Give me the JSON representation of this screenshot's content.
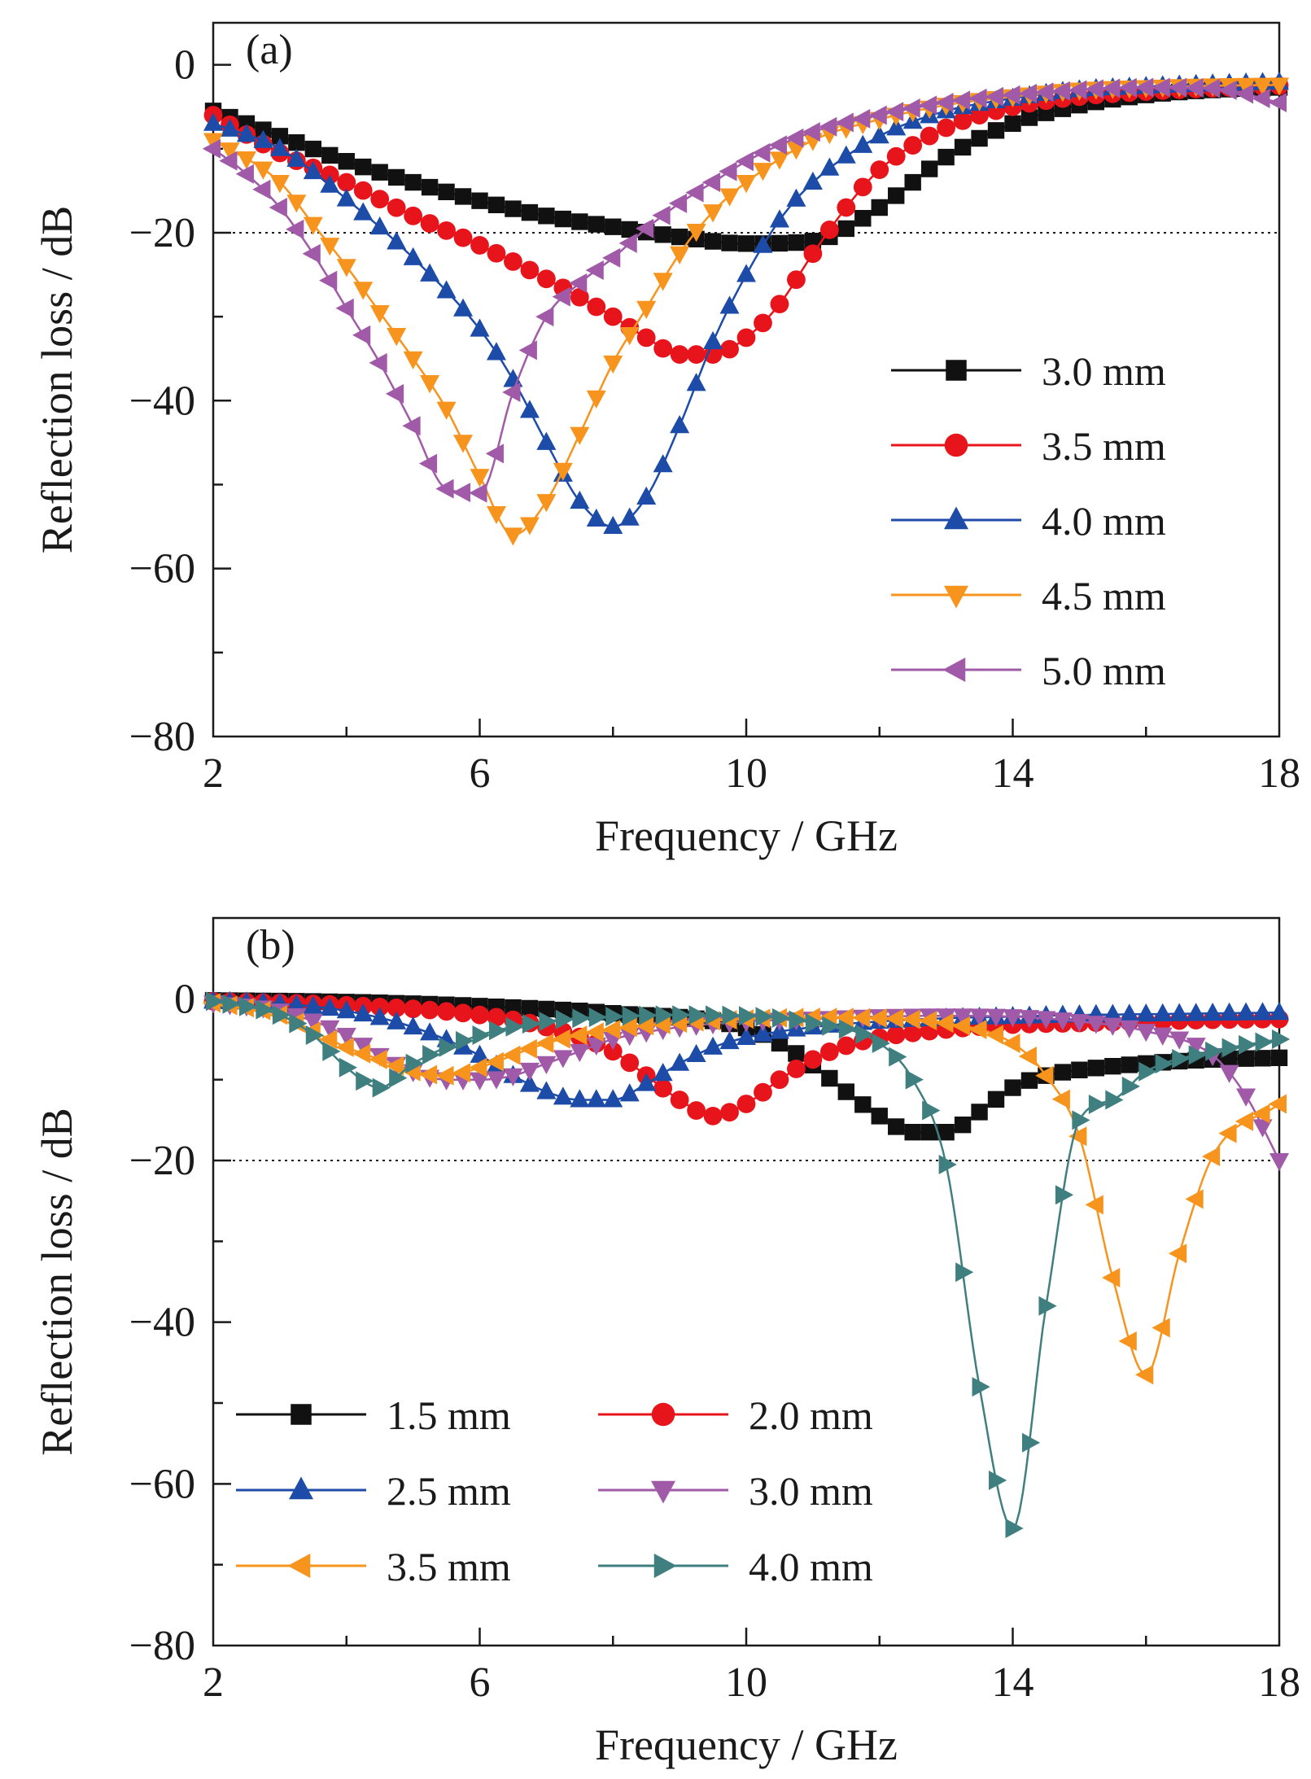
{
  "chart_data": [
    {
      "type": "line",
      "panel_label": "(a)",
      "xlabel": "Frequency / GHz",
      "ylabel": "Reflection loss / dB",
      "xlim": [
        2,
        18
      ],
      "ylim": [
        -80,
        5
      ],
      "xticks": [
        2,
        6,
        10,
        14,
        18
      ],
      "yticks": [
        0,
        -20,
        -40,
        -60,
        -80
      ],
      "xticks_display": [
        "2",
        "6",
        "10",
        "14",
        "18"
      ],
      "yticks_display": [
        "0",
        "−20",
        "−40",
        "−60",
        "−80"
      ],
      "reference_line_y": -20,
      "grid": false,
      "legend_position": "right",
      "legend_columns": 1,
      "series": [
        {
          "name": "3.0 mm",
          "color": "#111111",
          "marker": "square",
          "x": [
            2,
            3,
            4,
            5,
            6,
            7,
            8,
            9,
            10,
            11,
            12,
            13,
            14,
            15,
            16,
            17,
            18
          ],
          "y": [
            -5.5,
            -8.5,
            -11.5,
            -14,
            -16.2,
            -18,
            -19.3,
            -20.5,
            -21.3,
            -21,
            -17,
            -11,
            -7,
            -4.8,
            -3.6,
            -3,
            -2.7
          ]
        },
        {
          "name": "3.5 mm",
          "color": "#e8141b",
          "marker": "circle",
          "x": [
            2,
            3,
            4,
            5,
            6,
            7,
            8,
            8.5,
            9,
            9.5,
            10,
            10.5,
            11,
            11.5,
            12,
            13,
            14,
            15,
            16,
            17,
            18
          ],
          "y": [
            -6,
            -10.5,
            -14,
            -18,
            -21.5,
            -25.5,
            -30,
            -32.5,
            -34.5,
            -34.5,
            -32.5,
            -28.5,
            -22.5,
            -17,
            -12.5,
            -7.5,
            -5,
            -3.8,
            -3.2,
            -2.8,
            -2.5
          ]
        },
        {
          "name": "4.0 mm",
          "color": "#1c4ba8",
          "marker": "triangle-up",
          "x": [
            2,
            3,
            4,
            5,
            6,
            6.5,
            7,
            7.5,
            8,
            8.5,
            9,
            9.5,
            10,
            10.5,
            11,
            12,
            13,
            14,
            15,
            16,
            17,
            18
          ],
          "y": [
            -7,
            -10,
            -16,
            -23,
            -31.5,
            -37.5,
            -45,
            -52,
            -55,
            -51.5,
            -43,
            -33,
            -25,
            -18.5,
            -14,
            -8.5,
            -5.5,
            -4,
            -3,
            -2.6,
            -2.3,
            -2.1
          ]
        },
        {
          "name": "4.5 mm",
          "color": "#f7941d",
          "marker": "triangle-down",
          "x": [
            2,
            3,
            3.5,
            4,
            4.5,
            5,
            5.5,
            6,
            6.5,
            7,
            7.5,
            8,
            8.5,
            9,
            9.5,
            10,
            11,
            12,
            13,
            14,
            15,
            16,
            17,
            18
          ],
          "y": [
            -9,
            -14,
            -19,
            -24,
            -29.5,
            -35,
            -41,
            -49,
            -56,
            -52,
            -44,
            -35.5,
            -29,
            -22.5,
            -17.5,
            -14,
            -9,
            -6.5,
            -4.8,
            -3.8,
            -3,
            -2.7,
            -2.5,
            -2.4
          ]
        },
        {
          "name": "5.0 mm",
          "color": "#a05aa8",
          "marker": "triangle-left",
          "x": [
            2,
            2.5,
            3,
            3.5,
            4,
            4.5,
            5,
            5.5,
            6,
            6.5,
            7,
            7.5,
            8,
            8.5,
            9,
            9.5,
            10,
            11,
            12,
            13,
            14,
            15,
            16,
            17,
            18
          ],
          "y": [
            -10,
            -13,
            -17,
            -22.5,
            -29,
            -35.5,
            -43,
            -50.5,
            -51,
            -39,
            -30,
            -26,
            -23,
            -19.5,
            -16.5,
            -14,
            -11.5,
            -8,
            -6,
            -4.5,
            -3.6,
            -3,
            -2.7,
            -2.8,
            -4.5
          ]
        }
      ]
    },
    {
      "type": "line",
      "panel_label": "(b)",
      "xlabel": "Frequency / GHz",
      "ylabel": "Reflection loss / dB",
      "xlim": [
        2,
        18
      ],
      "ylim": [
        -80,
        10
      ],
      "xticks": [
        2,
        6,
        10,
        14,
        18
      ],
      "yticks": [
        0,
        -20,
        -40,
        -60,
        -80
      ],
      "xticks_display": [
        "2",
        "6",
        "10",
        "14",
        "18"
      ],
      "yticks_display": [
        "0",
        "−20",
        "−40",
        "−60",
        "−80"
      ],
      "reference_line_y": -20,
      "grid": false,
      "legend_position": "bottom-left",
      "legend_columns": 2,
      "series": [
        {
          "name": "1.5 mm",
          "color": "#111111",
          "marker": "square",
          "x": [
            2,
            4,
            6,
            8,
            10,
            10.5,
            11,
            11.5,
            12,
            12.5,
            13,
            13.5,
            14,
            14.5,
            15,
            16,
            17,
            18
          ],
          "y": [
            -0.2,
            -0.4,
            -0.9,
            -1.8,
            -3.6,
            -5.5,
            -8.2,
            -11.5,
            -14.5,
            -16.5,
            -16.5,
            -14,
            -11,
            -9.5,
            -8.8,
            -8,
            -7.5,
            -7.3
          ]
        },
        {
          "name": "2.0 mm",
          "color": "#e8141b",
          "marker": "circle",
          "x": [
            2,
            4,
            6,
            7,
            8,
            8.5,
            9,
            9.5,
            10,
            10.5,
            11,
            11.5,
            12,
            13,
            14,
            15,
            16,
            17,
            18
          ],
          "y": [
            -0.3,
            -0.8,
            -2,
            -3.5,
            -6.5,
            -9.5,
            -12.5,
            -14.5,
            -13,
            -10,
            -7.5,
            -5.8,
            -4.8,
            -3.8,
            -3.2,
            -3,
            -2.8,
            -2.6,
            -2.5
          ]
        },
        {
          "name": "2.5 mm",
          "color": "#1c4ba8",
          "marker": "triangle-up",
          "x": [
            2,
            3,
            4,
            5,
            6,
            6.5,
            7,
            7.5,
            8,
            8.5,
            9,
            9.5,
            10,
            11,
            12,
            13,
            14,
            15,
            16,
            17,
            18
          ],
          "y": [
            -0.3,
            -0.6,
            -1.5,
            -3.5,
            -7,
            -9.5,
            -11.5,
            -12.5,
            -12.5,
            -10.5,
            -8,
            -6,
            -4.8,
            -3.5,
            -2.8,
            -2.4,
            -2.2,
            -2,
            -1.9,
            -1.8,
            -1.7
          ]
        },
        {
          "name": "3.0 mm",
          "color": "#a05aa8",
          "marker": "triangle-down",
          "x": [
            2,
            3,
            4,
            4.5,
            5,
            5.5,
            6,
            6.5,
            7,
            7.5,
            8,
            9,
            10,
            11,
            12,
            13,
            14,
            15,
            16,
            17,
            17.5,
            18
          ],
          "y": [
            -0.5,
            -1.5,
            -4.5,
            -7,
            -9,
            -10,
            -10,
            -9.5,
            -8,
            -6.5,
            -5,
            -3.5,
            -2.8,
            -2.5,
            -2.2,
            -2.1,
            -2.2,
            -2.8,
            -4,
            -7,
            -12,
            -20
          ]
        },
        {
          "name": "3.5 mm",
          "color": "#f7941d",
          "marker": "triangle-left",
          "x": [
            2,
            3,
            3.5,
            4,
            4.5,
            5,
            5.5,
            6,
            7,
            8,
            9,
            10,
            11,
            12,
            13,
            14,
            14.5,
            15,
            15.5,
            16,
            16.5,
            17,
            18
          ],
          "y": [
            -0.5,
            -2,
            -4,
            -6,
            -7.5,
            -9,
            -9.5,
            -8.5,
            -5.5,
            -3.8,
            -3,
            -2.5,
            -2.3,
            -2.4,
            -3,
            -5.5,
            -9.5,
            -17,
            -34.5,
            -46.5,
            -31.5,
            -19.5,
            -13
          ]
        },
        {
          "name": "4.0 mm",
          "color": "#3f7f80",
          "marker": "triangle-right",
          "x": [
            2,
            3,
            3.5,
            4,
            4.5,
            5,
            6,
            7,
            8,
            9,
            10,
            11,
            12,
            12.5,
            13,
            13.5,
            14,
            14.5,
            15,
            15.5,
            16,
            17,
            18
          ],
          "y": [
            -0.3,
            -2,
            -4.5,
            -8.5,
            -11,
            -8,
            -4.5,
            -2.8,
            -2.2,
            -2,
            -2.1,
            -3,
            -5.5,
            -10,
            -20.5,
            -48,
            -65.5,
            -38,
            -15,
            -12.5,
            -9,
            -6.5,
            -5
          ]
        }
      ]
    }
  ]
}
